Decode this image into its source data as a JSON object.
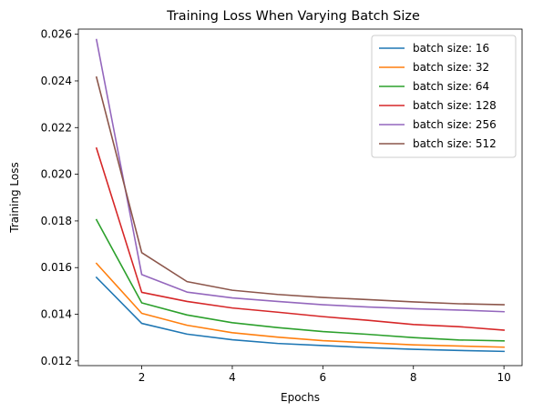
{
  "chart_data": {
    "type": "line",
    "title": "Training Loss When Varying Batch Size",
    "xlabel": "Epochs",
    "ylabel": "Training Loss",
    "xlim": [
      0.6,
      10.4
    ],
    "ylim": [
      0.0118,
      0.02622
    ],
    "xticks": [
      2,
      4,
      6,
      8,
      10
    ],
    "xtick_labels": [
      "2",
      "4",
      "6",
      "8",
      "10"
    ],
    "yticks": [
      0.012,
      0.014,
      0.016,
      0.018,
      0.02,
      0.022,
      0.024,
      0.026
    ],
    "ytick_labels": [
      "0.012",
      "0.014",
      "0.016",
      "0.018",
      "0.020",
      "0.022",
      "0.024",
      "0.026"
    ],
    "grid": false,
    "legend_position": "top-right",
    "x": [
      1,
      2,
      3,
      4,
      5,
      6,
      7,
      8,
      9,
      10
    ],
    "series": [
      {
        "name": "batch size: 16",
        "color": "#1f77b4",
        "values": [
          0.01558,
          0.01361,
          0.01315,
          0.01291,
          0.01275,
          0.01266,
          0.01257,
          0.0125,
          0.01245,
          0.01241
        ]
      },
      {
        "name": "batch size: 32",
        "color": "#ff7f0e",
        "values": [
          0.01618,
          0.01404,
          0.01353,
          0.01321,
          0.01302,
          0.01287,
          0.01278,
          0.01269,
          0.01264,
          0.01259
        ]
      },
      {
        "name": "batch size: 64",
        "color": "#2ca02c",
        "values": [
          0.01805,
          0.01449,
          0.01397,
          0.01364,
          0.01343,
          0.01326,
          0.01314,
          0.013,
          0.0129,
          0.01286
        ]
      },
      {
        "name": "batch size: 128",
        "color": "#d62728",
        "values": [
          0.02112,
          0.01494,
          0.01455,
          0.01427,
          0.01409,
          0.0139,
          0.01374,
          0.01356,
          0.01347,
          0.01332
        ]
      },
      {
        "name": "batch size: 256",
        "color": "#9467bd",
        "values": [
          0.02577,
          0.0157,
          0.01495,
          0.0147,
          0.01455,
          0.01441,
          0.01431,
          0.01424,
          0.01418,
          0.01411
        ]
      },
      {
        "name": "batch size: 512",
        "color": "#8c564b",
        "values": [
          0.02416,
          0.01664,
          0.0154,
          0.01503,
          0.01485,
          0.01472,
          0.01463,
          0.01453,
          0.01445,
          0.01441
        ]
      }
    ]
  }
}
